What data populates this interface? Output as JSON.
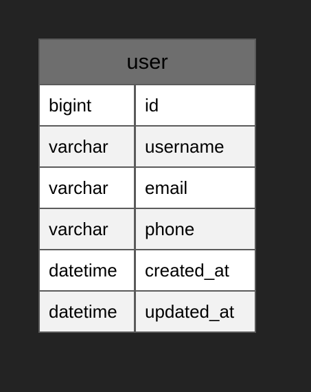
{
  "entity": {
    "title": "user",
    "columns": [
      {
        "type": "bigint",
        "name": "id"
      },
      {
        "type": "varchar",
        "name": "username"
      },
      {
        "type": "varchar",
        "name": "email"
      },
      {
        "type": "varchar",
        "name": "phone"
      },
      {
        "type": "datetime",
        "name": "created_at"
      },
      {
        "type": "datetime",
        "name": "updated_at"
      }
    ]
  },
  "colors": {
    "background": "#232323",
    "header": "#6e6e6e",
    "border": "#5a5a5a",
    "row_light": "#ffffff",
    "row_alt": "#f2f2f2"
  }
}
